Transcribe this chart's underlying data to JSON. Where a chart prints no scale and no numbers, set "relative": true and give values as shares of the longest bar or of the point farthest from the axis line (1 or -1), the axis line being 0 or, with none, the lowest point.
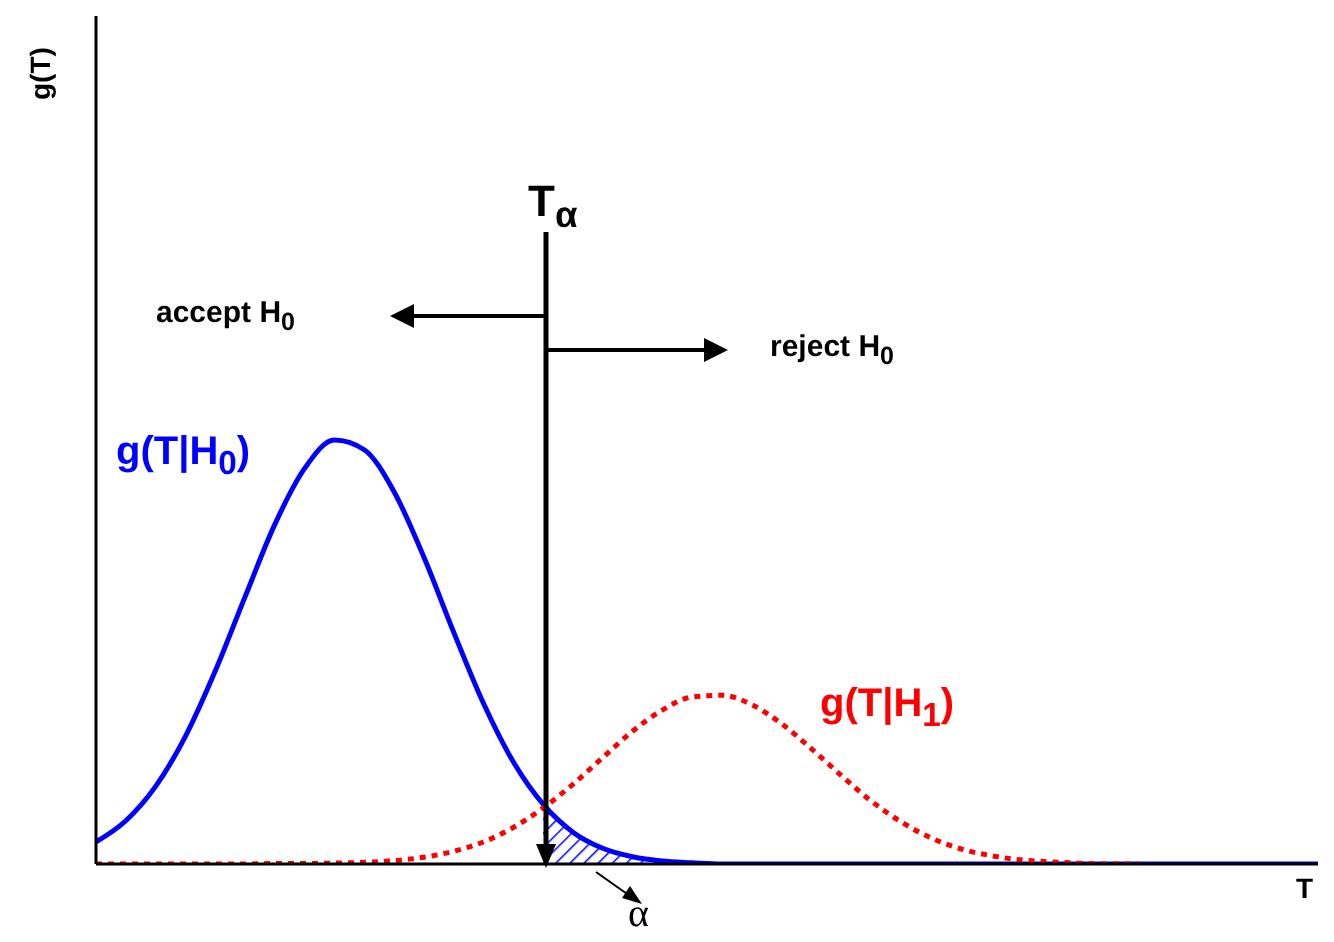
{
  "chart_data": {
    "type": "line",
    "relative": true,
    "xlabel": "T",
    "marker": "none",
    "categories": [
      null,
      null,
      null,
      null,
      null,
      null,
      null,
      null,
      null,
      null,
      null,
      null,
      null,
      null,
      null,
      null,
      null,
      null,
      null,
      null,
      null,
      null,
      null,
      null,
      null,
      null,
      null,
      null,
      null,
      null,
      null,
      null,
      null,
      null,
      null,
      null,
      null,
      null,
      null,
      null,
      null,
      null
    ],
    "series": [
      {
        "name": "g(T|H$_{0}$)",
        "color": "#0000ff",
        "line_style": "solid",
        "values": [
          0.052,
          0.102,
          0.183,
          0.301,
          0.455,
          0.63,
          0.801,
          0.933,
          1,
          0.977,
          0.878,
          0.724,
          0.547,
          0.379,
          0.241,
          0.141,
          0.075,
          0.037,
          0.017,
          0.007,
          0.003,
          0,
          0,
          0,
          0,
          0,
          0,
          0,
          0,
          0,
          0,
          0,
          0,
          0,
          0,
          0,
          0,
          0,
          0,
          0,
          0,
          0
        ]
      },
      {
        "name": "g(T|H$_{1}$)",
        "color": "#ff0000",
        "line_style": "dotted",
        "values": [
          0,
          0,
          0,
          0,
          0,
          0,
          0.001,
          0.001,
          0.002,
          0.004,
          0.008,
          0.016,
          0.03,
          0.052,
          0.086,
          0.132,
          0.188,
          0.251,
          0.313,
          0.363,
          0.394,
          0.398,
          0.376,
          0.331,
          0.272,
          0.209,
          0.149,
          0.1,
          0.062,
          0.036,
          0.02,
          0.01,
          0.005,
          0.002,
          0,
          0,
          null,
          null,
          null,
          null,
          null,
          null
        ]
      },
      {
        "type": "area",
        "color": "#0000ff",
        "values": [
          null,
          null,
          null,
          null,
          null,
          null,
          null,
          null,
          null,
          null,
          null,
          null,
          null,
          null,
          null,
          0.141,
          0.075,
          0.037,
          0.017,
          0.007,
          0.003,
          0,
          0,
          0,
          0,
          0,
          0,
          0,
          0,
          0,
          0,
          0,
          0,
          0,
          0,
          0,
          0,
          0,
          0,
          0,
          0,
          0
        ]
      }
    ],
    "annotations": [
      "accept H$_{0}$",
      "reject H$_{0}$",
      "α",
      "T$_{α}$",
      "g(T)"
    ]
  }
}
